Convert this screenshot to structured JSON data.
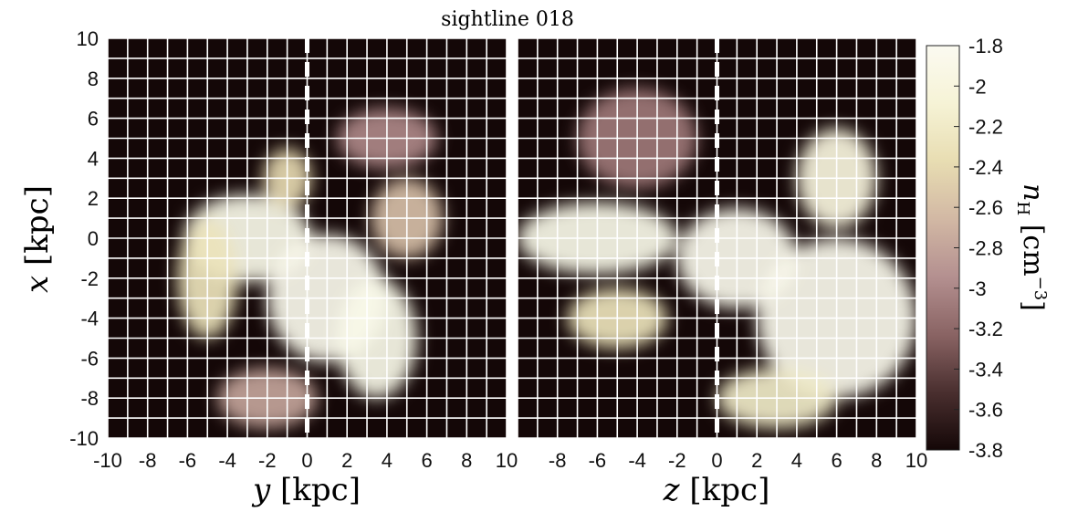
{
  "chart_data": {
    "type": "heatmap",
    "title": "sightline 018",
    "colorbar": {
      "label": "n_H [cm^-3]",
      "label_base": "n",
      "label_sub": "H",
      "label_unit": "[cm",
      "label_exp": "−3",
      "label_close": "]",
      "range": [
        -3.8,
        -1.8
      ],
      "ticks": [
        "-1.8",
        "-2",
        "-2.2",
        "-2.4",
        "-2.6",
        "-2.8",
        "-3",
        "-3.2",
        "-3.4",
        "-3.6",
        "-3.8"
      ],
      "ticks_values": [
        -1.8,
        -2,
        -2.2,
        -2.4,
        -2.6,
        -2.8,
        -3,
        -3.2,
        -3.4,
        -3.6,
        -3.8
      ],
      "colormap": [
        "#140707",
        "#4a2f2f",
        "#8a6464",
        "#b49090",
        "#d2b8a4",
        "#e8ddb2",
        "#f6f3d6",
        "#fbfaf1"
      ]
    },
    "grid": true,
    "sightline_marker": {
      "axis": "horizontal",
      "value": 0,
      "style": "dashed",
      "color": "#ffffff"
    },
    "panels": [
      {
        "xlabel_var": "y",
        "xlabel_unit": "[kpc]",
        "ylabel_var": "x",
        "ylabel_unit": "[kpc]",
        "xlim": [
          -10,
          10
        ],
        "ylim": [
          -10,
          10
        ],
        "xticks": [
          "-10",
          "-8",
          "-6",
          "-4",
          "-2",
          "0",
          "2",
          "4",
          "6",
          "8",
          "10"
        ],
        "yticks": [
          "10",
          "8",
          "6",
          "4",
          "2",
          "0",
          "-2",
          "-4",
          "-6",
          "-8",
          "-10"
        ],
        "blobs": [
          {
            "x": -3,
            "y": 0,
            "rx": 3.2,
            "ry": 2.2,
            "v": -1.9
          },
          {
            "x": 1,
            "y": -3,
            "rx": 3.0,
            "ry": 3.2,
            "v": -1.85
          },
          {
            "x": 3.5,
            "y": -5,
            "rx": 2.0,
            "ry": 3.0,
            "v": -1.9
          },
          {
            "x": -5,
            "y": -2,
            "rx": 1.5,
            "ry": 3.0,
            "v": -2.3
          },
          {
            "x": 5,
            "y": 1,
            "rx": 1.8,
            "ry": 2.0,
            "v": -2.6
          },
          {
            "x": -1,
            "y": 3,
            "rx": 1.2,
            "ry": 1.5,
            "v": -2.4
          },
          {
            "x": 4,
            "y": 5,
            "rx": 2.5,
            "ry": 1.5,
            "v": -3.0
          },
          {
            "x": -2,
            "y": -8,
            "rx": 2.5,
            "ry": 1.5,
            "v": -2.8
          }
        ]
      },
      {
        "xlabel_var": "z",
        "xlabel_unit": "[kpc]",
        "xlim": [
          -10,
          10
        ],
        "ylim": [
          -10,
          10
        ],
        "xticks": [
          "-8",
          "-6",
          "-4",
          "-2",
          "0",
          "2",
          "4",
          "6",
          "8",
          "10"
        ],
        "blobs": [
          {
            "x": -6,
            "y": 0,
            "rx": 4.0,
            "ry": 1.8,
            "v": -1.9
          },
          {
            "x": 1,
            "y": -1,
            "rx": 3.0,
            "ry": 2.5,
            "v": -1.85
          },
          {
            "x": 6,
            "y": -4,
            "rx": 4.0,
            "ry": 4.0,
            "v": -1.85
          },
          {
            "x": 6,
            "y": 3,
            "rx": 2.0,
            "ry": 2.5,
            "v": -2.0
          },
          {
            "x": -5,
            "y": -4,
            "rx": 2.5,
            "ry": 1.5,
            "v": -2.3
          },
          {
            "x": 3,
            "y": -8,
            "rx": 3.0,
            "ry": 1.5,
            "v": -2.2
          },
          {
            "x": -4,
            "y": 5,
            "rx": 3.0,
            "ry": 2.5,
            "v": -3.1
          }
        ]
      }
    ]
  }
}
